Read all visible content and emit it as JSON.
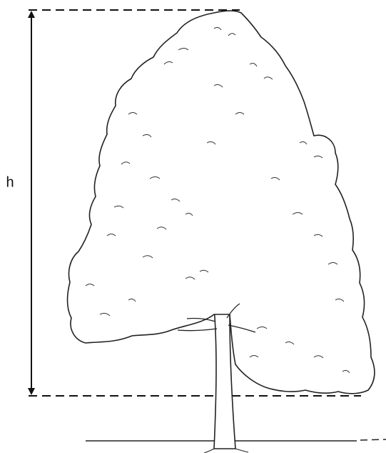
{
  "height_label": "h"
}
